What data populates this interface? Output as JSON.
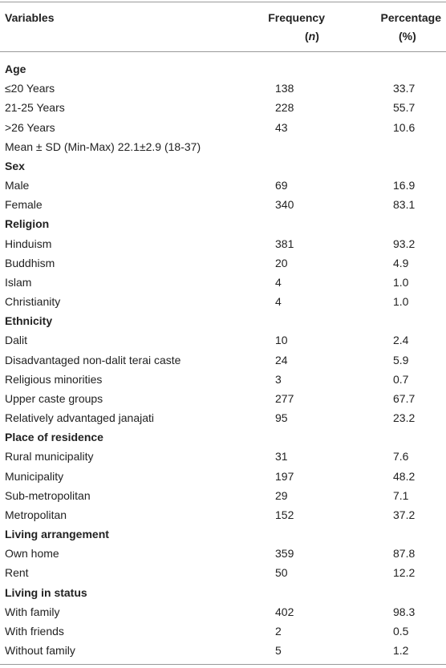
{
  "table": {
    "header": {
      "variables": "Variables",
      "frequency": [
        "Frequency",
        "(",
        "n",
        ")"
      ],
      "percentage": [
        "Percentage",
        "(%)"
      ]
    },
    "groups": [
      {
        "title": "Age",
        "rows": [
          [
            "≤20 Years",
            138,
            "33.7"
          ],
          [
            "21-25 Years",
            228,
            "55.7"
          ],
          [
            ">26 Years",
            43,
            "10.6"
          ]
        ],
        "note": "Mean ± SD (Min-Max) 22.1±2.9 (18-37)"
      },
      {
        "title": "Sex",
        "rows": [
          [
            "Male",
            69,
            "16.9"
          ],
          [
            "Female",
            340,
            "83.1"
          ]
        ]
      },
      {
        "title": "Religion",
        "rows": [
          [
            "Hinduism",
            381,
            "93.2"
          ],
          [
            "Buddhism",
            20,
            "4.9"
          ],
          [
            "Islam",
            4,
            "1.0"
          ],
          [
            "Christianity",
            4,
            "1.0"
          ]
        ]
      },
      {
        "title": "Ethnicity",
        "rows": [
          [
            "Dalit",
            10,
            "2.4"
          ],
          [
            "Disadvantaged non-dalit terai caste",
            24,
            "5.9"
          ],
          [
            "Religious minorities",
            3,
            "0.7"
          ],
          [
            "Upper caste groups",
            277,
            "67.7"
          ],
          [
            "Relatively advantaged janajati",
            95,
            "23.2"
          ]
        ]
      },
      {
        "title": "Place of residence",
        "rows": [
          [
            "Rural municipality",
            31,
            "7.6"
          ],
          [
            "Municipality",
            197,
            "48.2"
          ],
          [
            "Sub-metropolitan",
            29,
            "7.1"
          ],
          [
            "Metropolitan",
            152,
            "37.2"
          ]
        ]
      },
      {
        "title": "Living arrangement",
        "rows": [
          [
            "Own home",
            359,
            "87.8"
          ],
          [
            "Rent",
            50,
            "12.2"
          ]
        ]
      },
      {
        "title": "Living in status",
        "rows": [
          [
            "With family",
            402,
            "98.3"
          ],
          [
            "With friends",
            2,
            "0.5"
          ],
          [
            "Without family",
            5,
            "1.2"
          ]
        ]
      }
    ]
  }
}
